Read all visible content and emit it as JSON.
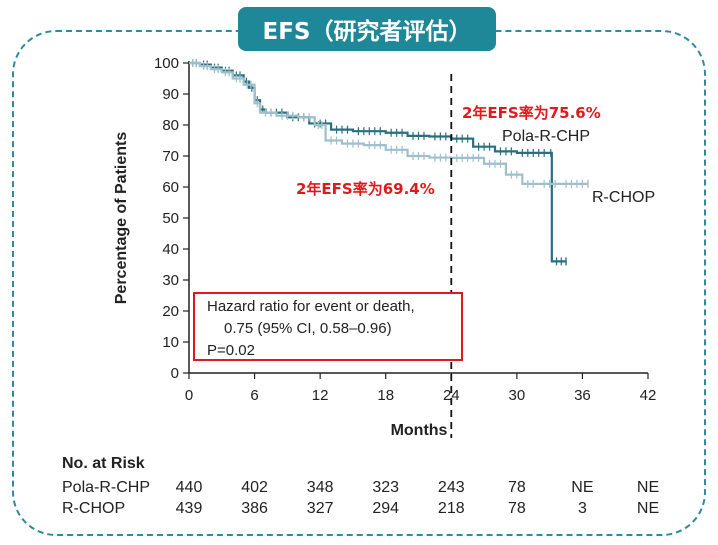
{
  "title": "EFS（研究者评估）",
  "chart_data": {
    "type": "line",
    "subtype": "kaplan-meier",
    "xlabel": "Months",
    "ylabel": "Percentage of Patients",
    "x_ticks": [
      0,
      6,
      12,
      18,
      24,
      30,
      36,
      42
    ],
    "y_ticks": [
      0,
      10,
      20,
      30,
      40,
      50,
      60,
      70,
      80,
      90,
      100
    ],
    "xlim": [
      0,
      42
    ],
    "ylim": [
      0,
      100
    ],
    "reference_line_x": 24,
    "series": [
      {
        "name": "Pola-R-CHP",
        "color": "#2a6f80",
        "x": [
          0,
          1,
          2,
          3,
          4,
          5,
          5.5,
          6,
          6.5,
          7,
          9,
          11,
          13,
          15,
          18,
          20,
          22,
          24,
          26,
          28,
          30,
          33,
          33.2,
          34.5
        ],
        "y": [
          100,
          99.5,
          98.5,
          97.5,
          96,
          94,
          92,
          88,
          85,
          84,
          82.5,
          80.5,
          78.5,
          78,
          77.5,
          76.5,
          76.3,
          75.6,
          73,
          71.5,
          71,
          71,
          36,
          36
        ]
      },
      {
        "name": "R-CHOP",
        "color": "#9fbfcc",
        "x": [
          0,
          1,
          2,
          3,
          4,
          5,
          6,
          6.5,
          8,
          10,
          11.5,
          12.5,
          14,
          16,
          18,
          20,
          22,
          24,
          27,
          29,
          30.5,
          32,
          34,
          36.5
        ],
        "y": [
          100,
          99,
          98,
          97,
          95,
          93,
          87,
          84,
          83,
          82.5,
          80,
          75,
          74,
          73.5,
          72,
          70,
          69.5,
          69.4,
          67.5,
          64,
          61,
          61,
          61,
          61
        ]
      }
    ],
    "annotations": {
      "pola_2yr": "2年EFS率为75.6%",
      "rchop_2yr": "2年EFS率为69.4%"
    },
    "hazard_ratio": {
      "line1": "Hazard ratio for event or death,",
      "line2": "0.75 (95% CI, 0.58–0.96)",
      "line3": "P=0.02"
    }
  },
  "risk_table": {
    "heading": "No. at Risk",
    "rows": [
      {
        "label": "Pola-R-CHP",
        "values": [
          "440",
          "402",
          "348",
          "323",
          "243",
          "78",
          "NE",
          "NE"
        ]
      },
      {
        "label": "R-CHOP",
        "values": [
          "439",
          "386",
          "327",
          "294",
          "218",
          "78",
          "3",
          "NE"
        ]
      }
    ]
  }
}
